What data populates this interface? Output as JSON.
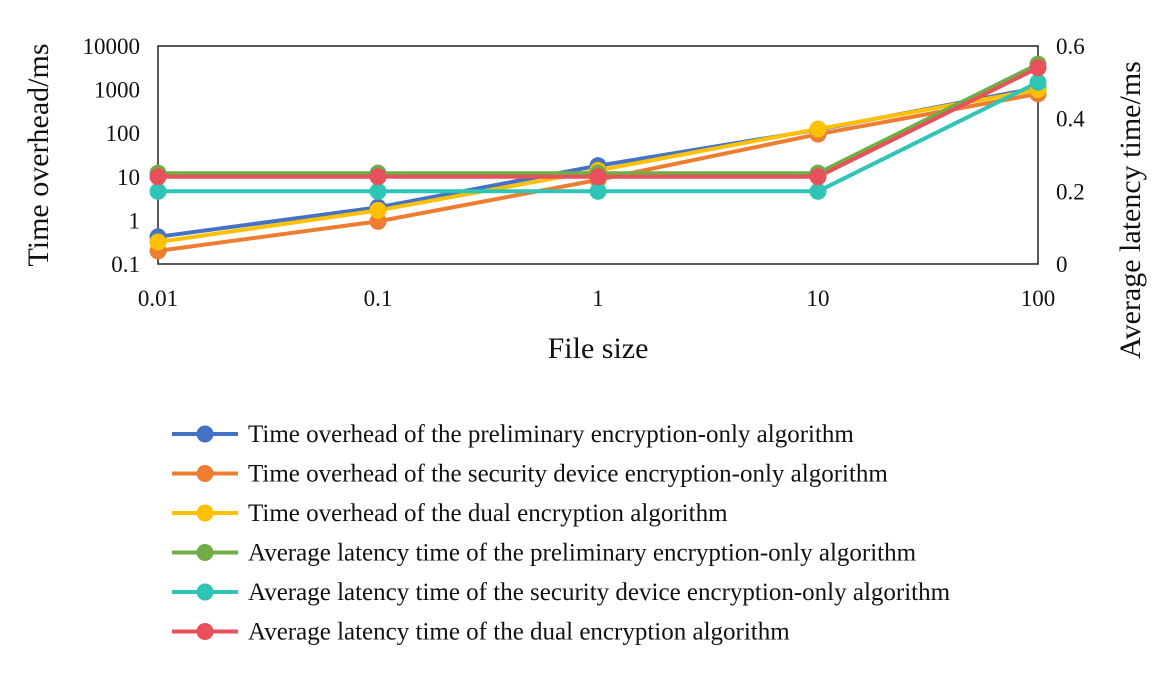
{
  "chart_data": {
    "type": "line",
    "x": [
      "0.01",
      "0.1",
      "1",
      "10",
      "100"
    ],
    "xlabel": "File size",
    "ylabel_left": "Time overhead/ms",
    "ylabel_right": "Average latency time/ms",
    "y_left_scale": "log",
    "y_left_range": [
      0.1,
      10000
    ],
    "y_left_ticks": [
      "0.1",
      "1",
      "10",
      "100",
      "1000",
      "10000"
    ],
    "y_right_range": [
      0,
      0.6
    ],
    "y_right_ticks": [
      "0",
      "0.2",
      "0.4",
      "0.6"
    ],
    "grid": false,
    "legend_position": "bottom",
    "series": [
      {
        "name": "Time overhead of the preliminary encryption-only algorithm",
        "axis": "left",
        "color": "#4472c4",
        "values": [
          0.42,
          2.0,
          18,
          120,
          1100
        ]
      },
      {
        "name": "Time overhead of the security device encryption-only algorithm",
        "axis": "left",
        "color": "#ed7d31",
        "values": [
          0.2,
          0.95,
          8.5,
          95,
          800
        ]
      },
      {
        "name": "Time overhead of the dual encryption algorithm",
        "axis": "left",
        "color": "#ffc000",
        "values": [
          0.32,
          1.7,
          14,
          125,
          1000
        ]
      },
      {
        "name": "Average latency time of the preliminary encryption-only algorithm",
        "axis": "right",
        "color": "#70ad47",
        "values": [
          0.25,
          0.25,
          0.25,
          0.25,
          0.55
        ]
      },
      {
        "name": "Average latency time of the security device encryption-only algorithm",
        "axis": "right",
        "color": "#2ec4b6",
        "values": [
          0.2,
          0.2,
          0.2,
          0.2,
          0.5
        ]
      },
      {
        "name": "Average latency time of the dual encryption algorithm",
        "axis": "right",
        "color": "#e8505b",
        "values": [
          0.24,
          0.24,
          0.24,
          0.24,
          0.54
        ]
      }
    ]
  }
}
